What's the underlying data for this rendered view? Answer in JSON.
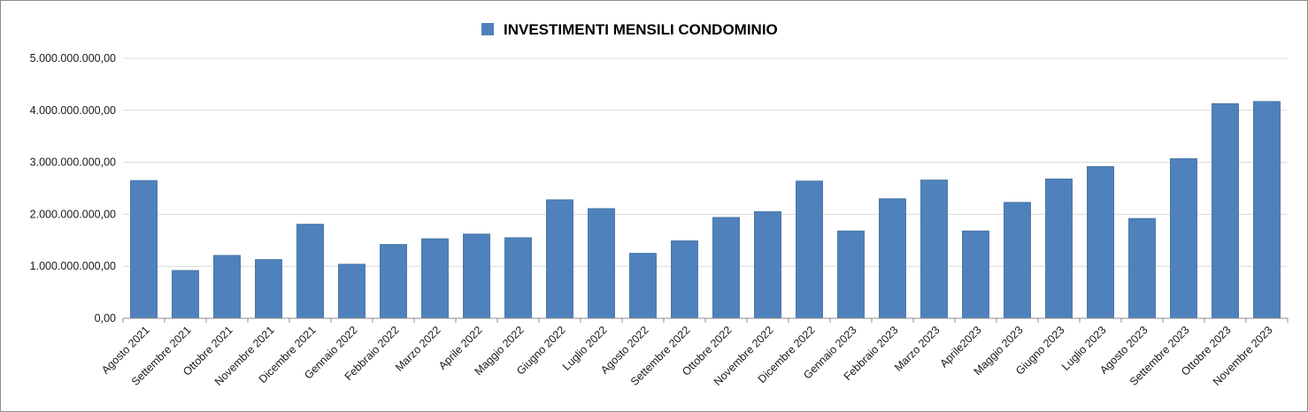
{
  "chart_data": {
    "type": "bar",
    "title": "",
    "legend": {
      "position": "top",
      "series_name": "INVESTIMENTI MENSILI CONDOMINIO"
    },
    "xlabel": "",
    "ylabel": "",
    "ylim": [
      0,
      5000000000
    ],
    "y_ticks": [
      {
        "value": 0,
        "label": "0,00"
      },
      {
        "value": 1000000000,
        "label": "1.000.000.000,00"
      },
      {
        "value": 2000000000,
        "label": "2.000.000.000,00"
      },
      {
        "value": 3000000000,
        "label": "3.000.000.000,00"
      },
      {
        "value": 4000000000,
        "label": "4.000.000.000,00"
      },
      {
        "value": 5000000000,
        "label": "5.000.000.000,00"
      }
    ],
    "grid": true,
    "categories": [
      "Agosto 2021",
      "Settembre 2021",
      "Ottobre 2021",
      "Novembre 2021",
      "Dicembre 2021",
      "Gennaio 2022",
      "Febbraio 2022",
      "Marzo 2022",
      "Aprile 2022",
      "Maggio 2022",
      "Giugno 2022",
      "Luglio 2022",
      "Agosto 2022",
      "Settembre 2022",
      "Ottobre 2022",
      "Novembre 2022",
      "Dicembre 2022",
      "Gennaio 2023",
      "Febbraio 2023",
      "Marzo 2023",
      "Aprile2023",
      "Maggio 2023",
      "Giugno 2023",
      "Luglio 2023",
      "Agosto 2023",
      "Settembre 2023",
      "Ottobre 2023",
      "Novembre 2023"
    ],
    "series": [
      {
        "name": "INVESTIMENTI MENSILI CONDOMINIO",
        "color": "#4f81bd",
        "values": [
          2650000000,
          920000000,
          1210000000,
          1130000000,
          1810000000,
          1040000000,
          1420000000,
          1530000000,
          1620000000,
          1550000000,
          2280000000,
          2110000000,
          1250000000,
          1490000000,
          1940000000,
          2050000000,
          2640000000,
          1680000000,
          2300000000,
          2660000000,
          1680000000,
          2230000000,
          2680000000,
          2920000000,
          1920000000,
          3070000000,
          4130000000,
          4170000000
        ]
      }
    ]
  }
}
